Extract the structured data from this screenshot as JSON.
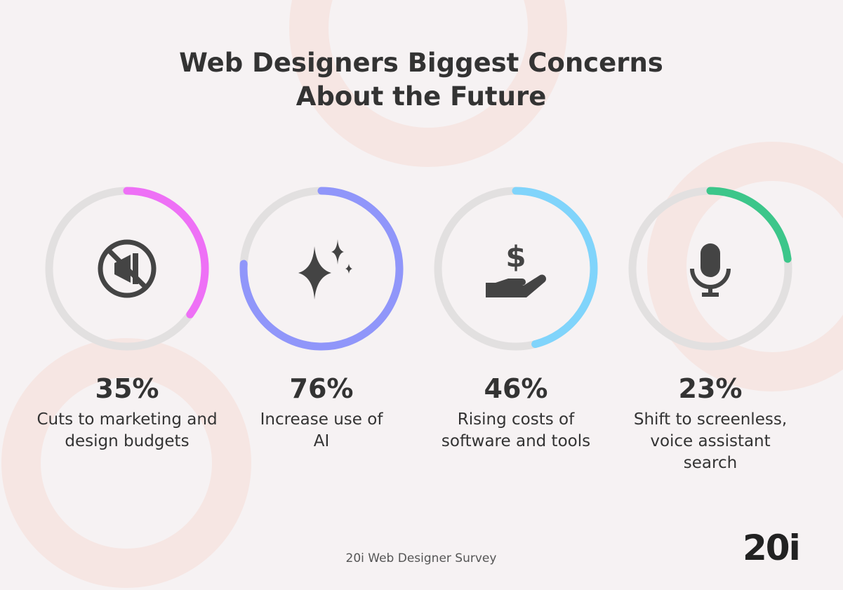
{
  "chart_data": {
    "type": "radial-progress",
    "title": "Web Designers Biggest Concerns About the Future",
    "categories": [
      "Cuts to marketing and design budgets",
      "Increase use of AI",
      "Rising costs of software and tools",
      "Shift to screenless, voice assistant search"
    ],
    "values": [
      35,
      76,
      46,
      23
    ],
    "value_labels": [
      "35%",
      "76%",
      "46%",
      "23%"
    ],
    "colors": [
      "#ee70f6",
      "#9096fa",
      "#80d4fb",
      "#3cc68a"
    ],
    "ylim": [
      0,
      100
    ],
    "source": "20i Web Designer Survey",
    "logo": "20i"
  }
}
